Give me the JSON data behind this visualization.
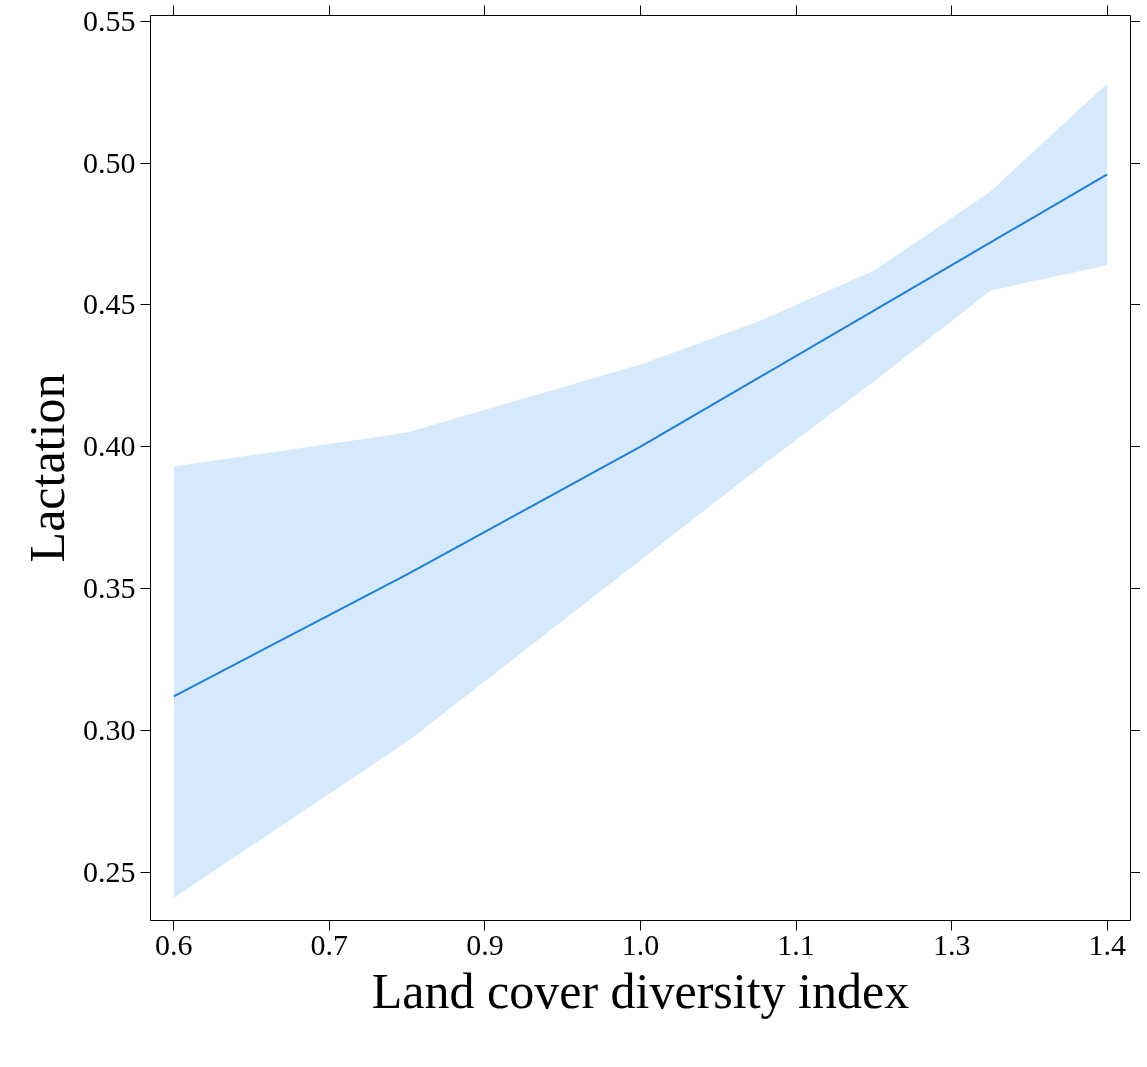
{
  "chart_data": {
    "type": "line",
    "xlabel": "Land cover diversity index",
    "ylabel": "Lactation",
    "x": [
      0.6,
      0.8,
      1.0,
      1.1,
      1.2,
      1.3,
      1.4
    ],
    "series": [
      {
        "color": "#1f7fd6",
        "values": [
          0.312,
          0.355,
          0.4,
          0.424,
          0.448,
          0.472,
          0.496
        ],
        "lower": [
          0.241,
          0.296,
          0.36,
          0.392,
          0.423,
          0.455,
          0.464
        ],
        "upper": [
          0.393,
          0.405,
          0.429,
          0.444,
          0.462,
          0.49,
          0.528
        ]
      }
    ],
    "xlim": [
      0.58,
      1.42
    ],
    "xticks": [
      0.6,
      {
        "value": 0.7333,
        "label": "0.7"
      },
      {
        "value": 0.8667,
        "label": "0.9"
      },
      {
        "value": 1.0,
        "label": "1.0"
      },
      {
        "value": 1.1333,
        "label": "1.1"
      },
      {
        "value": 1.2667,
        "label": "1.3"
      },
      1.4
    ],
    "ylim": [
      0.233,
      0.552
    ],
    "yticks": [
      0.25,
      {
        "value": 0.3,
        "label": "0.30"
      },
      0.35,
      {
        "value": 0.4,
        "label": "0.40"
      },
      0.45,
      {
        "value": 0.5,
        "label": "0.50"
      },
      0.55
    ],
    "grid": false,
    "marker": "none",
    "line_style": "solid"
  }
}
